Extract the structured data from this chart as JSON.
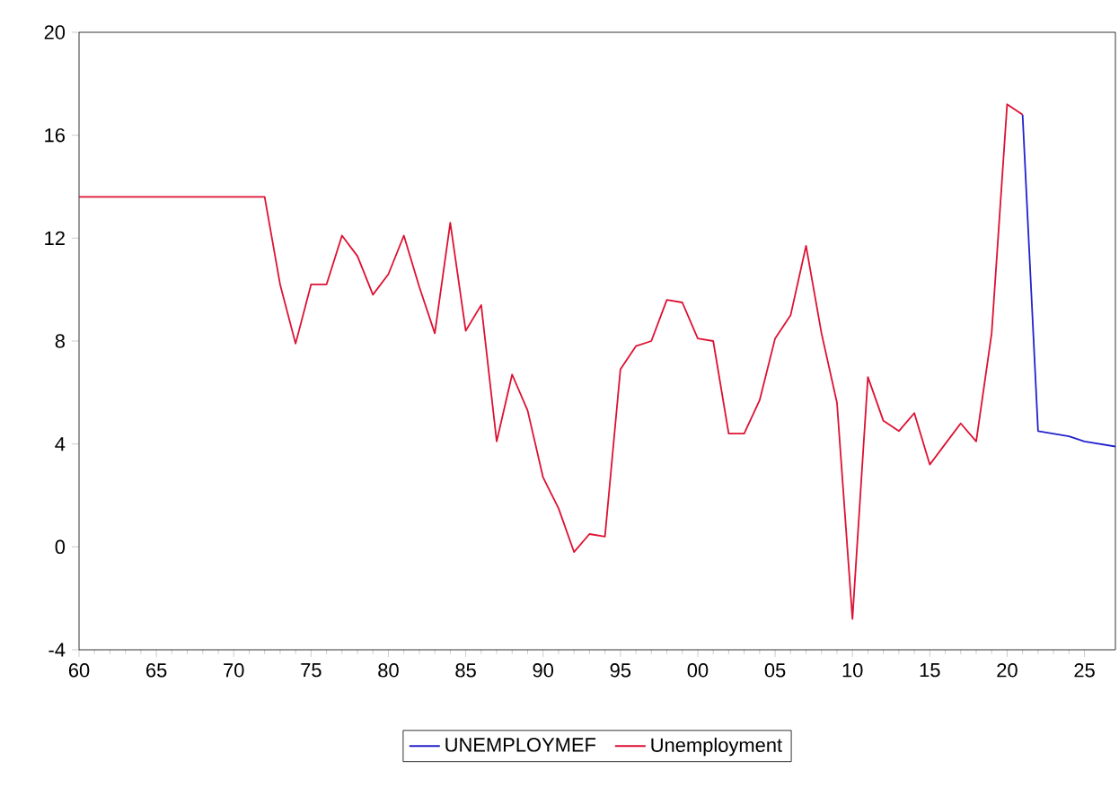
{
  "chart_data": {
    "type": "line",
    "x": [
      1960,
      1961,
      1962,
      1963,
      1964,
      1965,
      1966,
      1967,
      1968,
      1969,
      1970,
      1971,
      1972,
      1973,
      1974,
      1975,
      1976,
      1977,
      1978,
      1979,
      1980,
      1981,
      1982,
      1983,
      1984,
      1985,
      1986,
      1987,
      1988,
      1989,
      1990,
      1991,
      1992,
      1993,
      1994,
      1995,
      1996,
      1997,
      1998,
      1999,
      2000,
      2001,
      2002,
      2003,
      2004,
      2005,
      2006,
      2007,
      2008,
      2009,
      2010,
      2011,
      2012,
      2013,
      2014,
      2015,
      2016,
      2017,
      2018,
      2019,
      2020,
      2021,
      2022,
      2023,
      2024,
      2025,
      2026,
      2027
    ],
    "series": [
      {
        "name": "UNEMPLOYMEF",
        "color": "#2222cc",
        "values": [
          null,
          null,
          null,
          null,
          null,
          null,
          null,
          null,
          null,
          null,
          null,
          null,
          null,
          null,
          null,
          null,
          null,
          null,
          null,
          null,
          null,
          null,
          null,
          null,
          null,
          null,
          null,
          null,
          null,
          null,
          null,
          null,
          null,
          null,
          null,
          null,
          null,
          null,
          null,
          null,
          null,
          null,
          null,
          null,
          null,
          null,
          null,
          null,
          null,
          null,
          null,
          null,
          null,
          null,
          null,
          null,
          null,
          null,
          null,
          null,
          null,
          16.8,
          4.5,
          4.4,
          4.3,
          4.1,
          4.0,
          3.9
        ]
      },
      {
        "name": "Unemployment",
        "color": "#dd1133",
        "values": [
          13.6,
          13.6,
          13.6,
          13.6,
          13.6,
          13.6,
          13.6,
          13.6,
          13.6,
          13.6,
          13.6,
          13.6,
          13.6,
          10.2,
          7.9,
          10.2,
          10.2,
          12.1,
          11.3,
          9.8,
          10.6,
          12.1,
          10.1,
          8.3,
          12.6,
          8.4,
          9.4,
          4.1,
          6.7,
          5.3,
          2.7,
          1.5,
          -0.2,
          0.5,
          0.4,
          6.9,
          7.8,
          8.0,
          9.6,
          9.5,
          8.1,
          8.0,
          4.4,
          4.4,
          5.7,
          8.1,
          9.0,
          11.7,
          8.3,
          5.6,
          -2.8,
          6.6,
          4.9,
          4.5,
          5.2,
          3.2,
          4.0,
          4.8,
          4.1,
          8.3,
          17.2,
          16.8,
          null,
          null,
          null,
          null,
          null,
          null
        ]
      }
    ],
    "xlim": [
      1960,
      2027
    ],
    "ylim": [
      -4,
      20
    ],
    "xticks": [
      {
        "value": 1960,
        "label": "60"
      },
      {
        "value": 1965,
        "label": "65"
      },
      {
        "value": 1970,
        "label": "70"
      },
      {
        "value": 1975,
        "label": "75"
      },
      {
        "value": 1980,
        "label": "80"
      },
      {
        "value": 1985,
        "label": "85"
      },
      {
        "value": 1990,
        "label": "90"
      },
      {
        "value": 1995,
        "label": "95"
      },
      {
        "value": 2000,
        "label": "00"
      },
      {
        "value": 2005,
        "label": "05"
      },
      {
        "value": 2010,
        "label": "10"
      },
      {
        "value": 2015,
        "label": "15"
      },
      {
        "value": 2020,
        "label": "20"
      },
      {
        "value": 2025,
        "label": "25"
      }
    ],
    "yticks": [
      -4,
      0,
      4,
      8,
      12,
      16,
      20
    ],
    "legend": "bottom"
  }
}
